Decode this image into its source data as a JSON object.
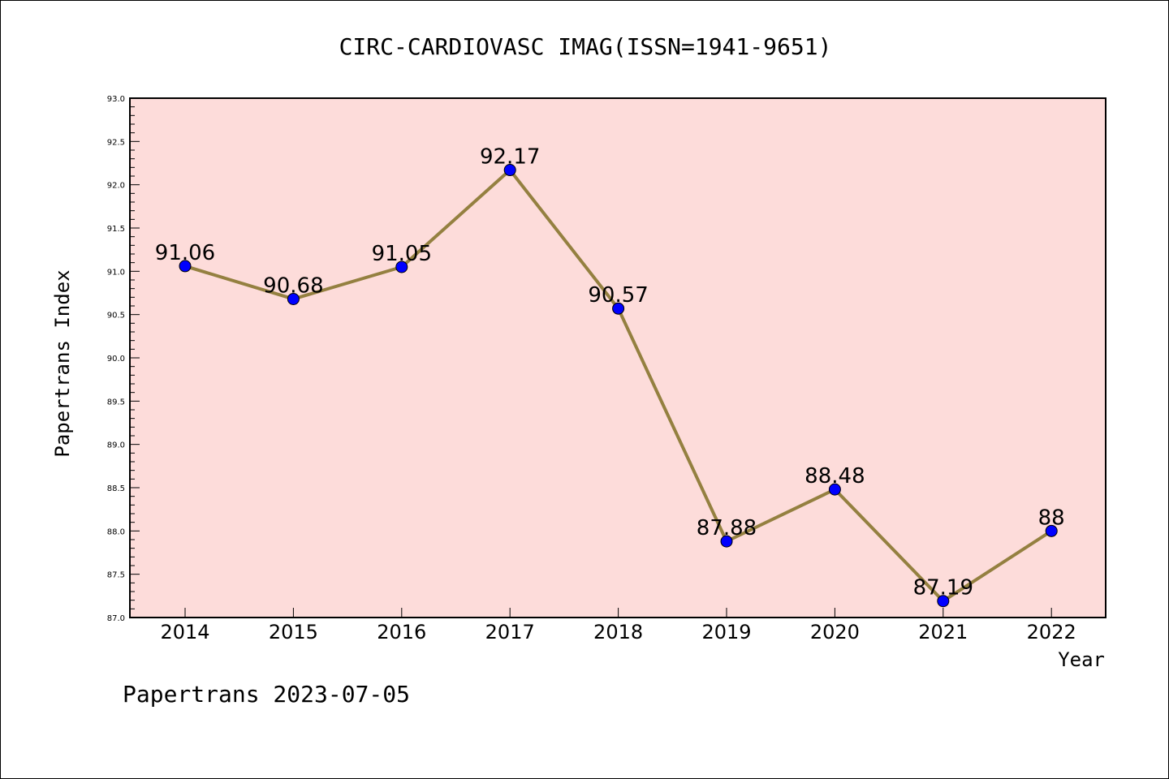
{
  "chart_data": {
    "type": "line",
    "title": "CIRC-CARDIOVASC IMAG(ISSN=1941-9651)",
    "xlabel": "Year",
    "ylabel": "Papertrans Index",
    "categories": [
      "2014",
      "2015",
      "2016",
      "2017",
      "2018",
      "2019",
      "2020",
      "2021",
      "2022"
    ],
    "series": [
      {
        "values": [
          91.06,
          90.68,
          91.05,
          92.17,
          90.57,
          87.88,
          88.48,
          87.19,
          88
        ],
        "labels": [
          "91.06",
          "90.68",
          "91.05",
          "92.17",
          "90.57",
          "87.88",
          "88.48",
          "87.19",
          "88"
        ]
      }
    ],
    "ylim": [
      87.0,
      93.0
    ],
    "yticks": [
      "87.0",
      "87.5",
      "88.0",
      "88.5",
      "89.0",
      "89.5",
      "90.0",
      "90.5",
      "91.0",
      "91.5",
      "92.0",
      "92.5",
      "93.0"
    ],
    "grid": false,
    "footer": "Papertrans 2023-07-05",
    "colors": {
      "plot_background": "#fddcda",
      "line": "#948040",
      "marker": "#0000ff"
    }
  }
}
